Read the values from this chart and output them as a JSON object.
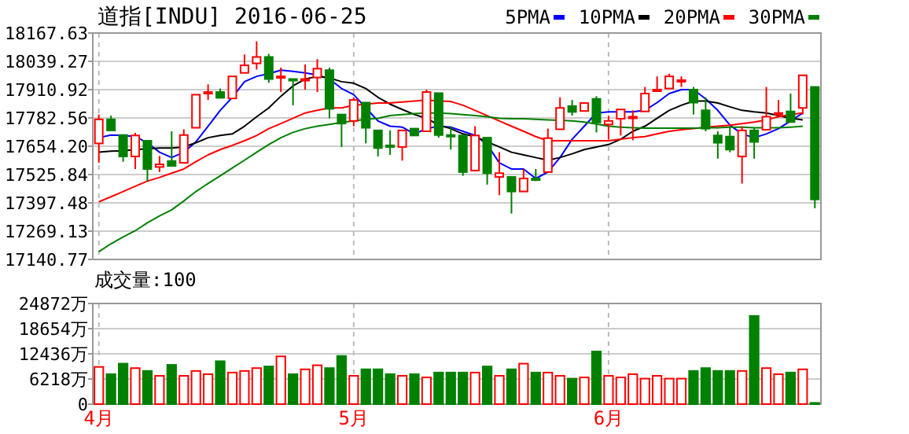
{
  "chart_data": [
    {
      "type": "candlestick",
      "title": "道指[INDU] 2016-06-25",
      "legend": "top right",
      "grid": true,
      "tick_labels": "y",
      "categories": [
        null,
        null,
        null,
        null,
        null,
        null,
        null,
        null,
        null,
        null,
        null,
        null,
        null,
        null,
        null,
        null,
        null,
        null,
        null,
        null,
        null,
        null,
        null,
        null,
        null,
        null,
        null,
        null,
        null,
        null,
        null,
        null,
        null,
        null,
        null,
        null,
        null,
        null,
        null,
        null,
        null,
        null,
        null,
        null,
        null,
        null,
        null,
        null,
        null,
        null,
        null,
        null,
        null,
        null,
        null,
        null,
        null,
        null,
        null,
        null
      ],
      "ylim": [
        17140.77,
        18167.63
      ],
      "yticks": [
        17140.77,
        17269.13,
        17397.48,
        17525.84,
        {
          "value": 17654.2,
          "label": "17654.20"
        },
        17782.56,
        17910.92,
        18039.27,
        18167.63
      ],
      "ohlc": [
        [
          17667,
          17798,
          17579,
          17776
        ],
        [
          17776,
          17793,
          17722,
          17726
        ],
        [
          17705,
          17710,
          17584,
          17608
        ],
        [
          17608,
          17715,
          17551,
          17703
        ],
        [
          17679,
          17686,
          17496,
          17551
        ],
        [
          17560,
          17610,
          17537,
          17572
        ],
        [
          17587,
          17722,
          17560,
          17565
        ],
        [
          17579,
          17731,
          17572,
          17705
        ],
        [
          17738,
          17893,
          17738,
          17888
        ],
        [
          17893,
          17935,
          17864,
          17900
        ],
        [
          17900,
          17916,
          17864,
          17874
        ],
        [
          17871,
          17978,
          17871,
          17971
        ],
        [
          17987,
          18070,
          17983,
          18021
        ],
        [
          18030,
          18130,
          18002,
          18059
        ],
        [
          18059,
          18073,
          17942,
          17959
        ],
        [
          17966,
          18011,
          17900,
          17971
        ],
        [
          17959,
          17964,
          17840,
          17959
        ],
        [
          17954,
          18025,
          17911,
          17959
        ],
        [
          17966,
          18049,
          17900,
          18006
        ],
        [
          17999,
          18011,
          17781,
          17824
        ],
        [
          17798,
          17805,
          17651,
          17757
        ],
        [
          17769,
          17876,
          17745,
          17864
        ],
        [
          17852,
          17857,
          17667,
          17738
        ],
        [
          17726,
          17734,
          17608,
          17646
        ],
        [
          17658,
          17726,
          17615,
          17658
        ],
        [
          17651,
          17734,
          17589,
          17726
        ],
        [
          17734,
          17738,
          17693,
          17703
        ],
        [
          17722,
          17911,
          17717,
          17900
        ],
        [
          17895,
          17895,
          17693,
          17705
        ],
        [
          17705,
          17745,
          17639,
          17705
        ],
        [
          17703,
          17710,
          17520,
          17537
        ],
        [
          17544,
          17745,
          17537,
          17703
        ],
        [
          17693,
          17703,
          17480,
          17532
        ],
        [
          17515,
          17627,
          17432,
          17532
        ],
        [
          17515,
          17520,
          17349,
          17449
        ],
        [
          17449,
          17551,
          17449,
          17508
        ],
        [
          17508,
          17551,
          17496,
          17508
        ],
        [
          17537,
          17734,
          17532,
          17691
        ],
        [
          17731,
          17876,
          17726,
          17828
        ],
        [
          17836,
          17864,
          17793,
          17810
        ],
        [
          17814,
          17850,
          17814,
          17850
        ],
        [
          17869,
          17881,
          17717,
          17762
        ],
        [
          17753,
          17793,
          17686,
          17769
        ],
        [
          17779,
          17828,
          17703,
          17821
        ],
        [
          17788,
          17817,
          17681,
          17788
        ],
        [
          17812,
          17923,
          17812,
          17893
        ],
        [
          17911,
          17971,
          17911,
          17911
        ],
        [
          17916,
          17983,
          17911,
          17971
        ],
        [
          17954,
          17971,
          17923,
          17954
        ],
        [
          17911,
          17923,
          17798,
          17852
        ],
        [
          17817,
          17876,
          17722,
          17734
        ],
        [
          17703,
          17722,
          17598,
          17670
        ],
        [
          17698,
          17745,
          17627,
          17639
        ],
        [
          17608,
          17745,
          17485,
          17726
        ],
        [
          17726,
          17738,
          17598,
          17674
        ],
        [
          17729,
          17923,
          17726,
          17788
        ],
        [
          17805,
          17864,
          17793,
          17805
        ],
        [
          17812,
          17893,
          17757,
          17764
        ],
        [
          17828,
          17976,
          17798,
          17976
        ],
        [
          17923,
          17923,
          17373,
          17413
        ]
      ],
      "colors": [
        "#ff0000",
        "#008000",
        "#008000",
        "#ff0000",
        "#008000",
        "#ff0000",
        "#008000",
        "#ff0000",
        "#ff0000",
        "#ff0000",
        "#008000",
        "#ff0000",
        "#ff0000",
        "#ff0000",
        "#008000",
        "#ff0000",
        "#008000",
        "#ff0000",
        "#ff0000",
        "#008000",
        "#008000",
        "#ff0000",
        "#008000",
        "#008000",
        "#008000",
        "#ff0000",
        "#008000",
        "#ff0000",
        "#008000",
        "#008000",
        "#008000",
        "#ff0000",
        "#008000",
        "#ff0000",
        "#008000",
        "#ff0000",
        "#008000",
        "#ff0000",
        "#ff0000",
        "#008000",
        "#ff0000",
        "#008000",
        "#ff0000",
        "#ff0000",
        "#ff0000",
        "#ff0000",
        "#ff0000",
        "#ff0000",
        "#ff0000",
        "#008000",
        "#008000",
        "#008000",
        "#008000",
        "#ff0000",
        "#008000",
        "#ff0000",
        "#ff0000",
        "#008000",
        "#ff0000",
        "#008000"
      ],
      "series": [
        {
          "name": "5PMA",
          "type": "line",
          "color": "#0000ff",
          "values": [
            17693,
            17705,
            17703,
            17698,
            17670,
            17627,
            17603,
            17627,
            17674,
            17745,
            17817,
            17876,
            17947,
            17971,
            17983,
            17999,
            17994,
            17987,
            17978,
            17959,
            17916,
            17888,
            17828,
            17769,
            17745,
            17741,
            17710,
            17734,
            17745,
            17741,
            17722,
            17703,
            17662,
            17579,
            17551,
            17551,
            17508,
            17537,
            17603,
            17686,
            17745,
            17805,
            17810,
            17810,
            17810,
            17817,
            17852,
            17893,
            17911,
            17911,
            17869,
            17817,
            17750,
            17710,
            17693,
            17710,
            17734,
            17769,
            17805,
            null
          ]
        },
        {
          "name": "10PMA",
          "type": "line",
          "color": "#000000",
          "values": [
            17627,
            17632,
            17634,
            17639,
            17643,
            17646,
            17646,
            17651,
            17670,
            17693,
            17703,
            17710,
            17745,
            17788,
            17828,
            17881,
            17928,
            17959,
            17971,
            17964,
            17947,
            17940,
            17916,
            17876,
            17845,
            17821,
            17798,
            17781,
            17750,
            17734,
            17710,
            17698,
            17674,
            17651,
            17627,
            17615,
            17603,
            17591,
            17603,
            17620,
            17639,
            17651,
            17662,
            17686,
            17722,
            17745,
            17781,
            17817,
            17840,
            17859,
            17859,
            17850,
            17833,
            17817,
            17810,
            17805,
            17793,
            17781,
            17774,
            null
          ]
        },
        {
          "name": "20PMA",
          "type": "line",
          "color": "#ff0000",
          "values": [
            17402,
            17425,
            17449,
            17473,
            17496,
            17513,
            17532,
            17551,
            17584,
            17615,
            17639,
            17658,
            17679,
            17703,
            17734,
            17757,
            17781,
            17805,
            17817,
            17828,
            17828,
            17840,
            17845,
            17850,
            17850,
            17855,
            17859,
            17864,
            17859,
            17857,
            17840,
            17817,
            17793,
            17769,
            17745,
            17722,
            17698,
            17679,
            17679,
            17679,
            17679,
            17679,
            17679,
            17686,
            17693,
            17698,
            17710,
            17722,
            17729,
            17734,
            17741,
            17745,
            17750,
            17757,
            17764,
            17774,
            17788,
            17798,
            17805,
            null
          ]
        },
        {
          "name": "30PMA",
          "type": "line",
          "color": "#008000",
          "values": [
            17176,
            17212,
            17243,
            17271,
            17307,
            17338,
            17366,
            17406,
            17449,
            17485,
            17520,
            17556,
            17591,
            17627,
            17662,
            17693,
            17717,
            17734,
            17745,
            17753,
            17762,
            17769,
            17776,
            17781,
            17793,
            17798,
            17802,
            17805,
            17805,
            17802,
            17798,
            17793,
            17788,
            17781,
            17779,
            17779,
            17776,
            17774,
            17772,
            17769,
            17764,
            17755,
            17745,
            17741,
            17738,
            17736,
            17736,
            17736,
            17736,
            17736,
            17738,
            17738,
            17741,
            17741,
            17738,
            17738,
            17738,
            17741,
            17745,
            null
          ]
        }
      ]
    },
    {
      "type": "bar",
      "title": "成交量:100",
      "grid": true,
      "categories": [
        "4月",
        null,
        null,
        null,
        null,
        null,
        null,
        null,
        null,
        null,
        null,
        null,
        null,
        null,
        null,
        null,
        null,
        null,
        null,
        null,
        null,
        "5月",
        null,
        null,
        null,
        null,
        null,
        null,
        null,
        null,
        null,
        null,
        null,
        null,
        null,
        null,
        null,
        null,
        null,
        null,
        null,
        null,
        "6月",
        null,
        null,
        null,
        null,
        null,
        null,
        null,
        null,
        null,
        null,
        null,
        null,
        null,
        null,
        null,
        null,
        null
      ],
      "ylim": [
        0,
        24872
      ],
      "yticks": [
        0,
        {
          "value": 6218,
          "label": "6218万"
        },
        {
          "value": 12436,
          "label": "12436万"
        },
        {
          "value": 18654,
          "label": "18654万"
        },
        {
          "value": 24872,
          "label": "24872万"
        }
      ],
      "values": [
        9200,
        7400,
        10000,
        8900,
        8200,
        7000,
        9700,
        7000,
        8200,
        7400,
        10600,
        7800,
        8200,
        8900,
        9300,
        11800,
        7400,
        8600,
        9600,
        8900,
        11900,
        7000,
        8600,
        8600,
        7400,
        7000,
        7400,
        6600,
        7800,
        7800,
        7800,
        7800,
        9300,
        7000,
        8600,
        10000,
        7800,
        7800,
        7000,
        6300,
        6600,
        13000,
        7000,
        6600,
        7400,
        6300,
        7000,
        6300,
        6300,
        8200,
        8900,
        8200,
        8200,
        8200,
        21800,
        8900,
        7400,
        7800,
        8600,
        300
      ],
      "colors": [
        "#ff0000",
        "#008000",
        "#008000",
        "#ff0000",
        "#008000",
        "#ff0000",
        "#008000",
        "#ff0000",
        "#ff0000",
        "#ff0000",
        "#008000",
        "#ff0000",
        "#ff0000",
        "#ff0000",
        "#008000",
        "#ff0000",
        "#008000",
        "#ff0000",
        "#ff0000",
        "#008000",
        "#008000",
        "#ff0000",
        "#008000",
        "#008000",
        "#008000",
        "#ff0000",
        "#008000",
        "#ff0000",
        "#008000",
        "#008000",
        "#008000",
        "#ff0000",
        "#008000",
        "#ff0000",
        "#008000",
        "#ff0000",
        "#008000",
        "#ff0000",
        "#ff0000",
        "#008000",
        "#ff0000",
        "#008000",
        "#ff0000",
        "#ff0000",
        "#ff0000",
        "#ff0000",
        "#ff0000",
        "#ff0000",
        "#ff0000",
        "#008000",
        "#008000",
        "#008000",
        "#008000",
        "#ff0000",
        "#008000",
        "#ff0000",
        "#ff0000",
        "#008000",
        "#ff0000",
        "#008000"
      ]
    }
  ]
}
